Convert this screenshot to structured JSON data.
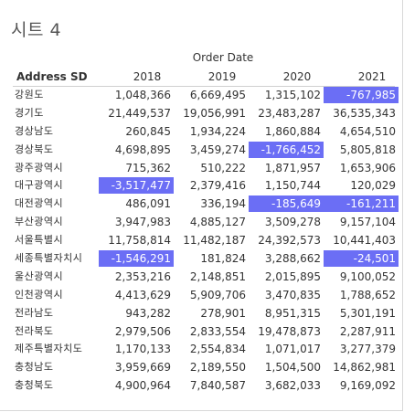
{
  "sheet": {
    "title": "시트 4"
  },
  "table": {
    "column_group_label": "Order Date",
    "row_header_label": "Address SD",
    "years": [
      "2018",
      "2019",
      "2020",
      "2021"
    ],
    "highlight_color": "#6b6ef5",
    "rows": [
      {
        "region": "강원도",
        "values": [
          "1,048,366",
          "6,669,495",
          "1,315,102",
          "-767,985"
        ]
      },
      {
        "region": "경기도",
        "values": [
          "21,449,537",
          "19,056,991",
          "23,483,287",
          "36,535,343"
        ]
      },
      {
        "region": "경상남도",
        "values": [
          "260,845",
          "1,934,224",
          "1,860,884",
          "4,654,510"
        ]
      },
      {
        "region": "경상북도",
        "values": [
          "4,698,895",
          "3,459,274",
          "-1,766,452",
          "5,805,818"
        ]
      },
      {
        "region": "광주광역시",
        "values": [
          "715,362",
          "510,222",
          "1,871,957",
          "1,653,906"
        ]
      },
      {
        "region": "대구광역시",
        "values": [
          "-3,517,477",
          "2,379,416",
          "1,150,744",
          "120,029"
        ]
      },
      {
        "region": "대전광역시",
        "values": [
          "486,091",
          "336,194",
          "-185,649",
          "-161,211"
        ]
      },
      {
        "region": "부산광역시",
        "values": [
          "3,947,983",
          "4,885,127",
          "3,509,278",
          "9,157,104"
        ]
      },
      {
        "region": "서울특별시",
        "values": [
          "11,758,814",
          "11,482,187",
          "24,392,573",
          "10,441,403"
        ]
      },
      {
        "region": "세종특별자치시",
        "values": [
          "-1,546,291",
          "181,824",
          "3,288,662",
          "-24,501"
        ]
      },
      {
        "region": "울산광역시",
        "values": [
          "2,353,216",
          "2,148,851",
          "2,015,895",
          "9,100,052"
        ]
      },
      {
        "region": "인천광역시",
        "values": [
          "4,413,629",
          "5,909,706",
          "3,470,835",
          "1,788,652"
        ]
      },
      {
        "region": "전라남도",
        "values": [
          "943,282",
          "278,901",
          "8,951,315",
          "5,301,191"
        ]
      },
      {
        "region": "전라북도",
        "values": [
          "2,979,506",
          "2,833,554",
          "19,478,873",
          "2,287,911"
        ]
      },
      {
        "region": "제주특별자치도",
        "values": [
          "1,170,133",
          "2,554,834",
          "1,071,017",
          "3,277,379"
        ]
      },
      {
        "region": "충청남도",
        "values": [
          "3,959,669",
          "2,189,550",
          "1,504,500",
          "14,862,981"
        ]
      },
      {
        "region": "충청북도",
        "values": [
          "4,900,964",
          "7,840,587",
          "3,682,033",
          "9,169,092"
        ]
      }
    ]
  }
}
